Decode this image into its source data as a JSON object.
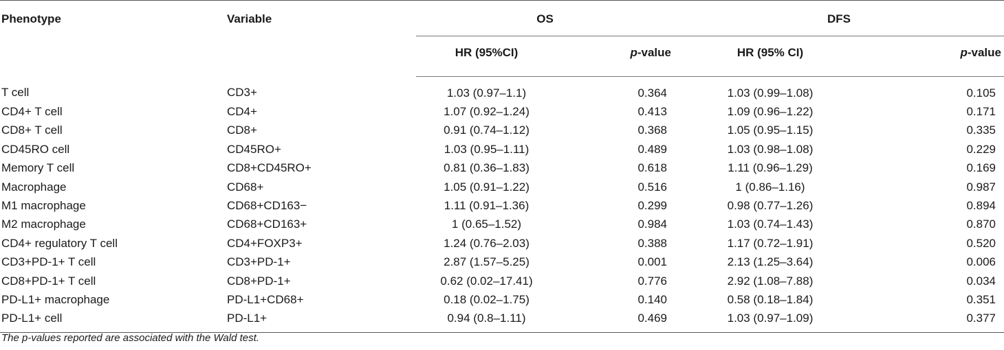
{
  "header": {
    "phenotype": "Phenotype",
    "variable": "Variable",
    "os": "OS",
    "dfs": "DFS",
    "os_hr": "HR (95%CI)",
    "os_p_italic": "p",
    "os_p_rest": "-value",
    "dfs_hr": "HR (95% CI)",
    "dfs_p_italic": "p",
    "dfs_p_rest": "-value"
  },
  "rows": [
    {
      "phenotype": "T cell",
      "variable": "CD3+",
      "os_hr": "1.03 (0.97–1.1)",
      "os_p": "0.364",
      "dfs_hr": "1.03 (0.99–1.08)",
      "dfs_p": "0.105"
    },
    {
      "phenotype": "CD4+ T cell",
      "variable": "CD4+",
      "os_hr": "1.07 (0.92–1.24)",
      "os_p": "0.413",
      "dfs_hr": "1.09 (0.96–1.22)",
      "dfs_p": "0.171"
    },
    {
      "phenotype": "CD8+ T cell",
      "variable": "CD8+",
      "os_hr": "0.91 (0.74–1.12)",
      "os_p": "0.368",
      "dfs_hr": "1.05 (0.95–1.15)",
      "dfs_p": "0.335"
    },
    {
      "phenotype": "CD45RO cell",
      "variable": "CD45RO+",
      "os_hr": "1.03 (0.95–1.11)",
      "os_p": "0.489",
      "dfs_hr": "1.03 (0.98–1.08)",
      "dfs_p": "0.229"
    },
    {
      "phenotype": "Memory T cell",
      "variable": "CD8+CD45RO+",
      "os_hr": "0.81 (0.36–1.83)",
      "os_p": "0.618",
      "dfs_hr": "1.11 (0.96–1.29)",
      "dfs_p": "0.169"
    },
    {
      "phenotype": "Macrophage",
      "variable": "CD68+",
      "os_hr": "1.05 (0.91–1.22)",
      "os_p": "0.516",
      "dfs_hr": "1 (0.86–1.16)",
      "dfs_p": "0.987"
    },
    {
      "phenotype": "M1 macrophage",
      "variable": "CD68+CD163−",
      "os_hr": "1.11 (0.91–1.36)",
      "os_p": "0.299",
      "dfs_hr": "0.98 (0.77–1.26)",
      "dfs_p": "0.894"
    },
    {
      "phenotype": "M2 macrophage",
      "variable": "CD68+CD163+",
      "os_hr": "1 (0.65–1.52)",
      "os_p": "0.984",
      "dfs_hr": "1.03 (0.74–1.43)",
      "dfs_p": "0.870"
    },
    {
      "phenotype": "CD4+ regulatory T cell",
      "variable": "CD4+FOXP3+",
      "os_hr": "1.24 (0.76–2.03)",
      "os_p": "0.388",
      "dfs_hr": "1.17 (0.72–1.91)",
      "dfs_p": "0.520"
    },
    {
      "phenotype": "CD3+PD-1+ T cell",
      "variable": "CD3+PD-1+",
      "os_hr": "2.87 (1.57–5.25)",
      "os_p": "0.001",
      "dfs_hr": "2.13 (1.25–3.64)",
      "dfs_p": "0.006"
    },
    {
      "phenotype": "CD8+PD-1+ T cell",
      "variable": "CD8+PD-1+",
      "os_hr": "0.62 (0.02–17.41)",
      "os_p": "0.776",
      "dfs_hr": "2.92 (1.08–7.88)",
      "dfs_p": "0.034"
    },
    {
      "phenotype": "PD-L1+ macrophage",
      "variable": "PD-L1+CD68+",
      "os_hr": "0.18 (0.02–1.75)",
      "os_p": "0.140",
      "dfs_hr": "0.58 (0.18–1.84)",
      "dfs_p": "0.351"
    },
    {
      "phenotype": "PD-L1+ cell",
      "variable": "PD-L1+",
      "os_hr": "0.94 (0.8–1.11)",
      "os_p": "0.469",
      "dfs_hr": "1.03 (0.97–1.09)",
      "dfs_p": "0.377"
    }
  ],
  "footnote": "The p-values reported are associated with the Wald test."
}
